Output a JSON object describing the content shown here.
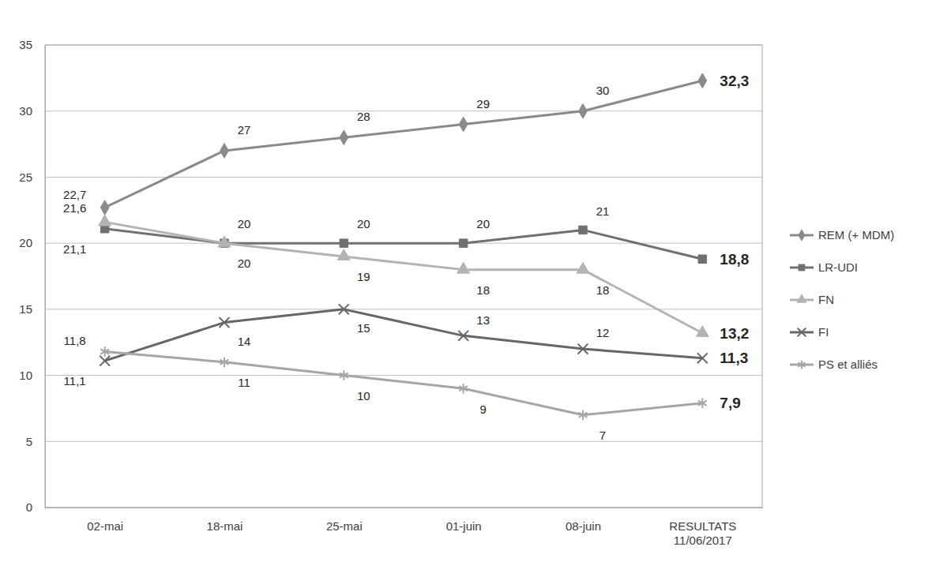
{
  "chart_data": {
    "type": "line",
    "categories": [
      "02-mai",
      "18-mai",
      "25-mai",
      "01-juin",
      "08-juin",
      "RESULTATS 11/06/2017"
    ],
    "ylim": [
      0,
      35
    ],
    "yticks": [
      0,
      5,
      10,
      15,
      20,
      25,
      30,
      35
    ],
    "grid": true,
    "legend": "right",
    "data_labels": true,
    "series": [
      {
        "name": "REM (+ MDM)",
        "color": "#8a8a8a",
        "marker": "diamond",
        "values": [
          22.7,
          27,
          28,
          29,
          30,
          32.3
        ],
        "value_labels": [
          "22,7",
          "27",
          "28",
          "29",
          "30",
          "32,3"
        ]
      },
      {
        "name": "LR-UDI",
        "color": "#707070",
        "marker": "square",
        "values": [
          21.1,
          20,
          20,
          20,
          21,
          18.8
        ],
        "value_labels": [
          "21,1",
          "20",
          "20",
          "20",
          "21",
          "18,8"
        ]
      },
      {
        "name": "FN",
        "color": "#b3b3b3",
        "marker": "triangle",
        "values": [
          21.6,
          20,
          19,
          18,
          18,
          13.2
        ],
        "value_labels": [
          "21,6",
          "20",
          "19",
          "18",
          "18",
          "13,2"
        ]
      },
      {
        "name": "FI",
        "color": "#666666",
        "marker": "x",
        "values": [
          11.1,
          14,
          15,
          13,
          12,
          11.3
        ],
        "value_labels": [
          "11,1",
          "14",
          "15",
          "13",
          "12",
          "11,3"
        ]
      },
      {
        "name": "PS et alliés",
        "color": "#a6a6a6",
        "marker": "asterisk",
        "values": [
          11.8,
          11,
          10,
          9,
          7,
          7.9
        ],
        "value_labels": [
          "11,8",
          "11",
          "10",
          "9",
          "7",
          "7,9"
        ]
      }
    ]
  }
}
